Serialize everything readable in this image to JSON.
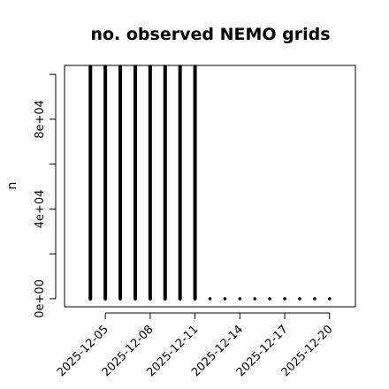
{
  "chart_data": {
    "type": "spike",
    "title": "no. observed NEMO grids",
    "y_label": "n",
    "x": [
      "2025-12-04",
      "2025-12-05",
      "2025-12-06",
      "2025-12-07",
      "2025-12-08",
      "2025-12-09",
      "2025-12-10",
      "2025-12-11",
      "2025-12-12",
      "2025-12-13",
      "2025-12-14",
      "2025-12-15",
      "2025-12-16",
      "2025-12-17",
      "2025-12-18",
      "2025-12-19",
      "2025-12-20"
    ],
    "values": [
      103500,
      103500,
      103500,
      103500,
      103500,
      103500,
      103500,
      103500,
      0,
      0,
      0,
      0,
      0,
      0,
      0,
      0,
      0
    ],
    "color": "#000000",
    "xlim": [
      "2025-12-02T06:30:00Z",
      "2025-12-21T17:30:00Z"
    ],
    "xticks": [
      "2025-12-05",
      "2025-12-08",
      "2025-12-11",
      "2025-12-14",
      "2025-12-17",
      "2025-12-20"
    ],
    "ylim": [
      -3600,
      104000
    ],
    "yticks": [
      {
        "value": 0,
        "label": "0e+00"
      },
      {
        "value": 20000,
        "label": null
      },
      {
        "value": 40000,
        "label": "4e+04"
      },
      {
        "value": 60000,
        "label": null
      },
      {
        "value": 80000,
        "label": "8e+04"
      },
      {
        "value": 100000,
        "label": null
      }
    ]
  }
}
